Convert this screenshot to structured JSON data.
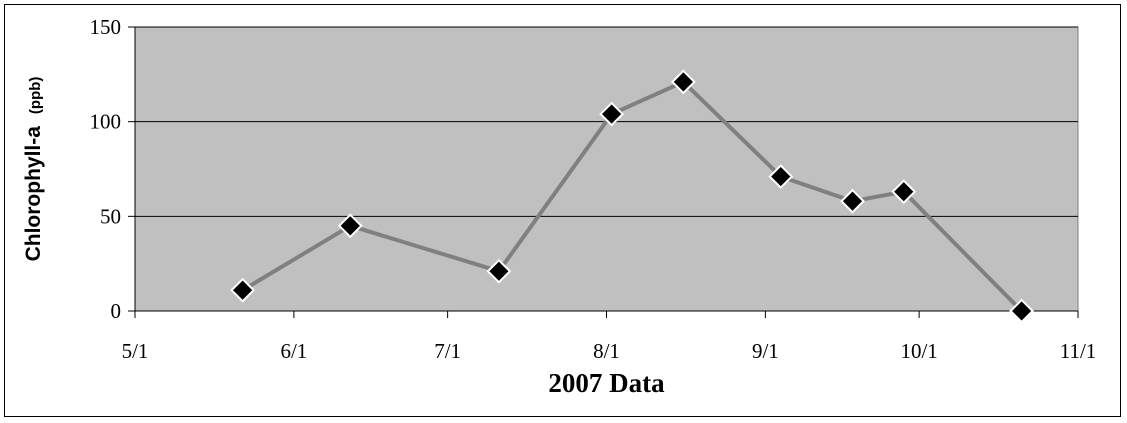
{
  "chart_data": {
    "type": "line",
    "title": "",
    "xlabel": "2007 Data",
    "ylabel": "Chlorophyll-a",
    "ylabel_unit": "(ppb)",
    "x_ticks": [
      "5/1",
      "6/1",
      "7/1",
      "8/1",
      "9/1",
      "10/1",
      "11/1"
    ],
    "x_tick_dates": [
      "2007-05-01",
      "2007-06-01",
      "2007-07-01",
      "2007-08-01",
      "2007-09-01",
      "2007-10-01",
      "2007-11-01"
    ],
    "y_ticks": [
      "0",
      "50",
      "100",
      "150"
    ],
    "ylim": [
      0,
      150
    ],
    "xlim": [
      "2007-05-01",
      "2007-11-01"
    ],
    "grid": "horizontal",
    "legend": "none",
    "series": [
      {
        "x": [
          "2007-05-22",
          "2007-06-12",
          "2007-07-11",
          "2007-08-02",
          "2007-08-16",
          "2007-09-04",
          "2007-09-18",
          "2007-09-28",
          "2007-10-21"
        ],
        "y": [
          11,
          45,
          21,
          104,
          121,
          71,
          58,
          63,
          0
        ]
      }
    ],
    "colors": {
      "plot_background": "#c0c0c0",
      "line": "#808080",
      "marker": "#000000",
      "marker_outline": "#ffffff"
    }
  }
}
